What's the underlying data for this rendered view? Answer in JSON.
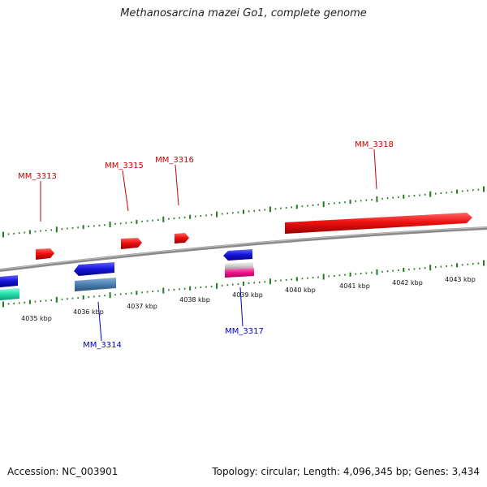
{
  "title": "Methanosarcina mazei Go1, complete genome",
  "footer": {
    "accession": "Accession: NC_003901",
    "summary": "Topology: circular; Length: 4,096,345 bp; Genes: 3,434"
  },
  "colors": {
    "forward_gene": "#ee1111",
    "reverse_gene": "#1818dd",
    "reverse_gene_alt": "#4a7fb0",
    "backbone": "#8a8a8a",
    "tick": "#1f7a1f",
    "label_forward": "#cc0000",
    "label_reverse": "#0000cc",
    "teal_feature": "#22ddaa",
    "pink_feature": "#ee1188",
    "grey_feature": "#cccccc"
  },
  "scale": {
    "unit": "kbp",
    "ticks": [
      "4035 kbp",
      "4036 kbp",
      "4037 kbp",
      "4038 kbp",
      "4039 kbp",
      "4040 kbp",
      "4041 kbp",
      "4042 kbp",
      "4043 kbp"
    ]
  },
  "genes": {
    "forward": [
      "MM_3313",
      "MM_3315",
      "MM_3316",
      "MM_3318"
    ],
    "reverse": [
      "MM_3314",
      "MM_3317"
    ]
  }
}
